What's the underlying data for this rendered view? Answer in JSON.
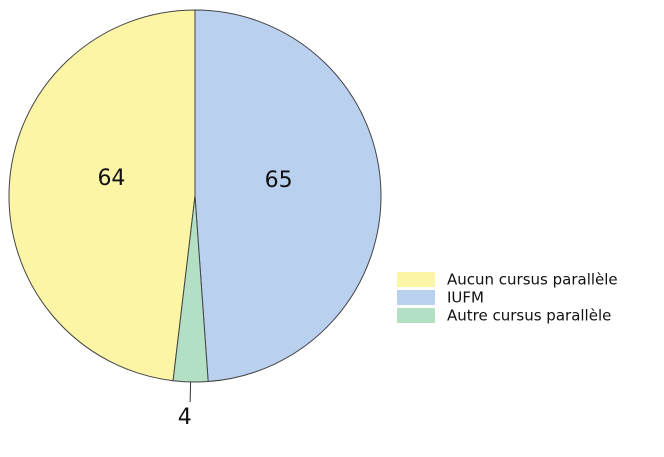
{
  "chart_data": {
    "type": "pie",
    "categories": [
      "Aucun cursus parallèle",
      "IUFM",
      "Autre cursus parallèle"
    ],
    "values": [
      64,
      65,
      4
    ],
    "colors": [
      "#fdf5a6",
      "#b9d0ee",
      "#b3dfc5"
    ],
    "legend": "right"
  }
}
